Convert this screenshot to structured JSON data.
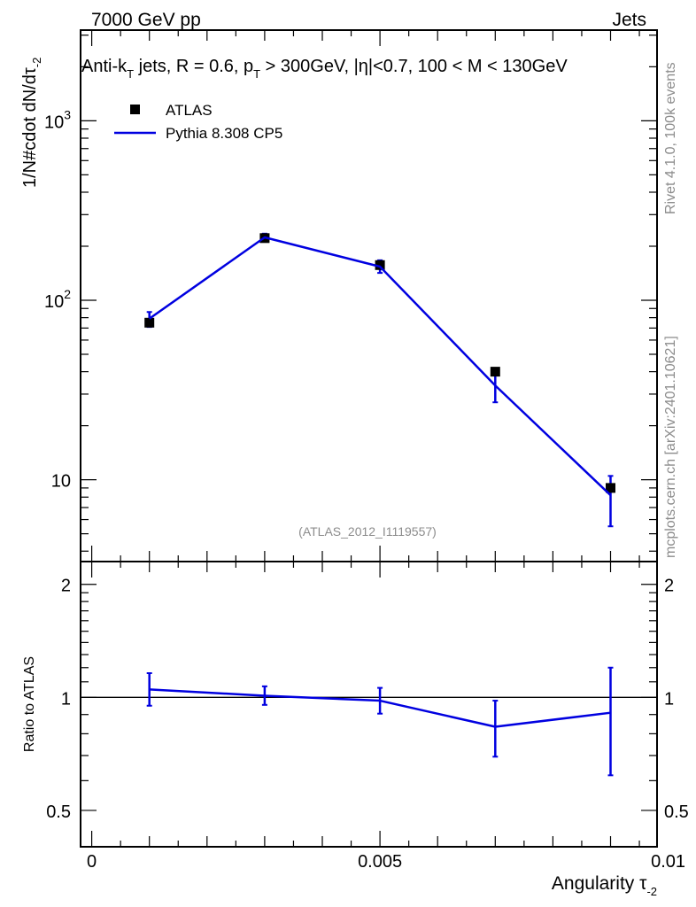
{
  "header": {
    "left": "7000 GeV pp",
    "right": "Jets",
    "side_rivet": "Rivet 4.1.0,  100k events",
    "side_mcplots": "mcplots.cern.ch [arXiv:2401.10621]",
    "analysis_id": "(ATLAS_2012_I1119557)"
  },
  "colors": {
    "data": "#000000",
    "mc": "#0000e0",
    "analysis_label": "#8c8c8c"
  },
  "chart_data": [
    {
      "type": "line",
      "panel": "main",
      "title": "Anti-k_T jets, R = 0.6, p_T > 300GeV, |η|<0.7, 100 < M < 130GeV",
      "title_parts": {
        "a": "Anti-k",
        "a_sub": "T",
        "b": " jets, R = 0.6, p",
        "b_sub": "T",
        "c": " > 300GeV, |η|<0.7, 100 < M < 130GeV"
      },
      "ylabel": "1/N#cdot dN/dτ",
      "ylabel_sub": "-2",
      "yscale": "log",
      "ylim": [
        3.5,
        3200
      ],
      "xlim": [
        0,
        0.01
      ],
      "y_ticks": [
        {
          "value": 1000,
          "base": "10",
          "exp": "3"
        },
        {
          "value": 100,
          "base": "10",
          "exp": "2"
        },
        {
          "value": 10,
          "base": "10",
          "exp": ""
        }
      ],
      "legend": {
        "position": "top-left",
        "data_label": "ATLAS",
        "mc_label": "Pythia 8.308 CP5"
      },
      "series": [
        {
          "name": "ATLAS",
          "style": "markers",
          "x": [
            0.001,
            0.003,
            0.005,
            0.007,
            0.009
          ],
          "y": [
            75,
            222,
            157,
            40,
            9.0
          ]
        },
        {
          "name": "Pythia 8.308 CP5",
          "style": "line",
          "x": [
            0.001,
            0.003,
            0.005,
            0.007,
            0.009
          ],
          "y": [
            79,
            224,
            154,
            33.5,
            8.2
          ],
          "err_low": [
            71,
            212,
            142,
            27,
            5.5
          ],
          "err_high": [
            86,
            235,
            167,
            39,
            10.5
          ]
        }
      ]
    },
    {
      "type": "line",
      "panel": "ratio",
      "ylabel": "Ratio to ATLAS",
      "xlabel": "Angularity τ",
      "xlabel_sub": "-2",
      "yscale": "log",
      "ylim": [
        0.4,
        2.3
      ],
      "xlim": [
        0,
        0.01
      ],
      "x_ticks": [
        {
          "value": 0,
          "label": "0"
        },
        {
          "value": 0.005,
          "label": "0.005"
        },
        {
          "value": 0.01,
          "label": "0.01"
        }
      ],
      "y_ticks": [
        {
          "value": 2,
          "label": "2"
        },
        {
          "value": 1,
          "label": "1"
        },
        {
          "value": 0.5,
          "label": "0.5"
        }
      ],
      "reference": 1,
      "series": [
        {
          "name": "Pythia 8.308 CP5 / ATLAS",
          "x": [
            0.001,
            0.003,
            0.005,
            0.007,
            0.009
          ],
          "y": [
            1.05,
            1.01,
            0.98,
            0.835,
            0.91
          ],
          "err_low": [
            0.95,
            0.955,
            0.905,
            0.695,
            0.62
          ],
          "err_high": [
            1.16,
            1.07,
            1.06,
            0.98,
            1.2
          ]
        }
      ]
    }
  ]
}
